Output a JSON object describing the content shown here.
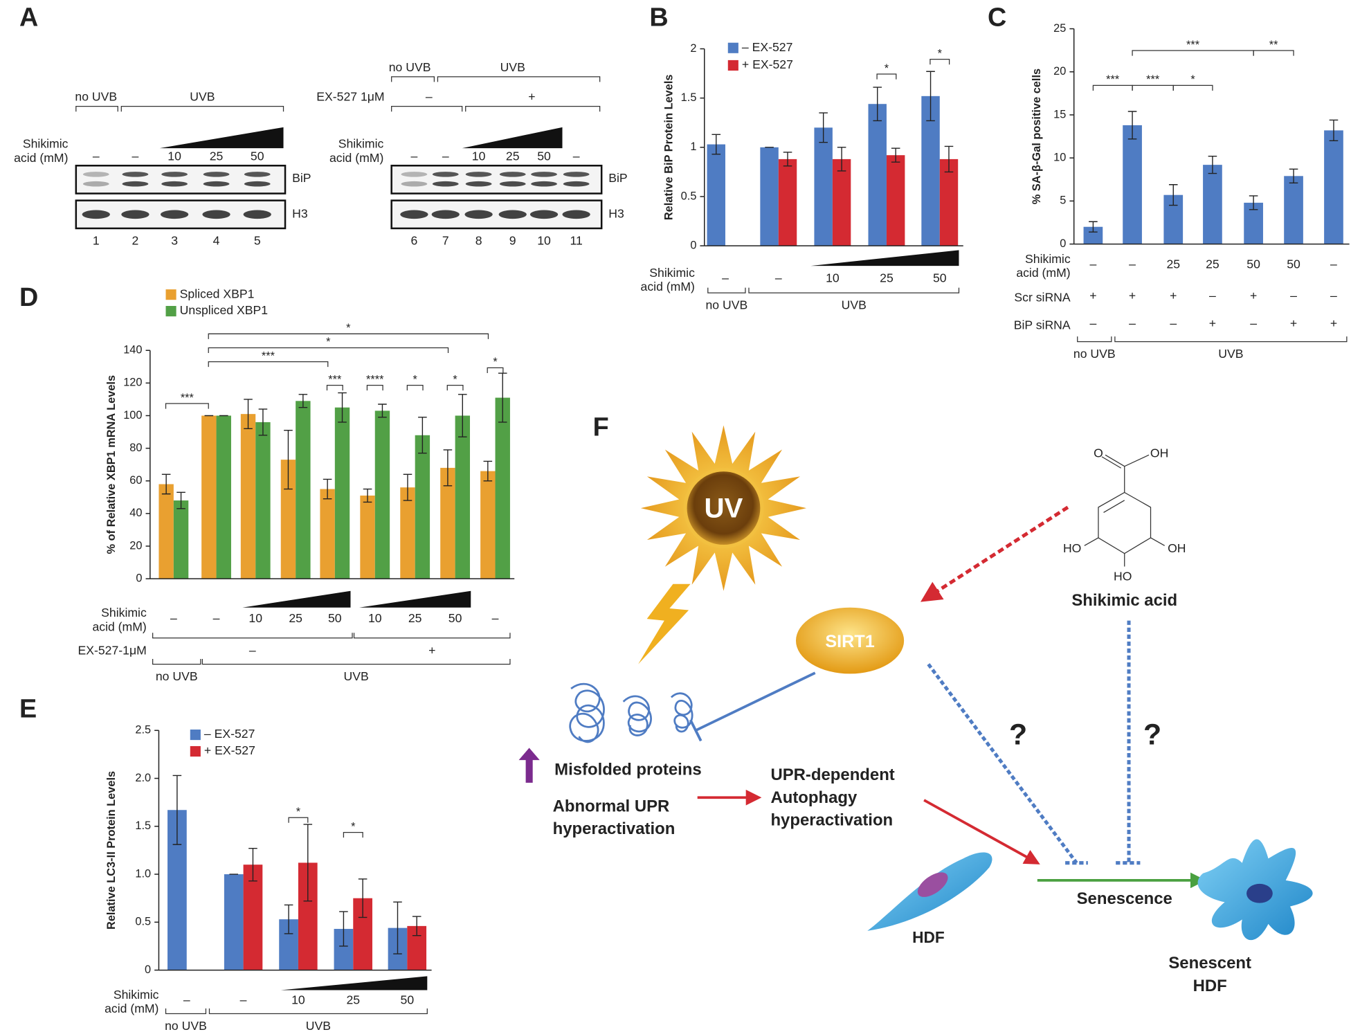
{
  "chart_data": [
    {
      "panel": "B",
      "type": "bar",
      "ylabel": "Relative BiP Protein Levels",
      "ylim": [
        0,
        2
      ],
      "yticks": [
        0,
        0.5,
        1,
        1.5,
        2
      ],
      "series": [
        {
          "name": "– EX-527",
          "color": "#4f7cc3",
          "values": [
            1.03,
            1.0,
            1.2,
            1.44,
            1.52
          ],
          "errors": [
            0.1,
            0.0,
            0.15,
            0.17,
            0.25
          ]
        },
        {
          "name": "+ EX-527",
          "color": "#d42a32",
          "values": [
            null,
            0.88,
            0.88,
            0.92,
            0.88
          ],
          "errors": [
            null,
            0.07,
            0.12,
            0.07,
            0.13
          ]
        }
      ],
      "rows": [
        {
          "label": [
            "Shikimic",
            "acid (mM)"
          ],
          "values": [
            "–",
            "–",
            "10",
            "25",
            "50"
          ]
        }
      ],
      "brackets": [
        {
          "labels": [
            "no UVB",
            "UVB"
          ]
        }
      ],
      "significance": [
        "*",
        "*"
      ]
    },
    {
      "panel": "C",
      "type": "bar",
      "ylabel": "% SA-β-Gal positive cells",
      "ylim": [
        0,
        25
      ],
      "yticks": [
        0,
        5,
        10,
        15,
        20,
        25
      ],
      "series": [
        {
          "color": "#4f7cc3",
          "values": [
            2.0,
            13.8,
            5.7,
            9.2,
            4.8,
            7.9,
            13.2
          ],
          "errors": [
            0.6,
            1.6,
            1.2,
            1.0,
            0.8,
            0.8,
            1.2
          ]
        }
      ],
      "rows": [
        {
          "label": [
            "Shikimic",
            "acid (mM)"
          ],
          "values": [
            "–",
            "–",
            "25",
            "25",
            "50",
            "50",
            "–"
          ]
        },
        {
          "label": [
            "Scr siRNA"
          ],
          "values": [
            "+",
            "+",
            "+",
            "–",
            "+",
            "–",
            "–"
          ]
        },
        {
          "label": [
            "BiP siRNA"
          ],
          "values": [
            "–",
            "–",
            "–",
            "+",
            "–",
            "+",
            "+"
          ]
        }
      ],
      "brackets": [
        {
          "labels": [
            "no UVB",
            "UVB"
          ]
        }
      ],
      "significance": [
        "***",
        "***",
        "*",
        "***",
        "**"
      ]
    },
    {
      "panel": "D",
      "type": "bar",
      "ylabel": "% of Relative XBP1 mRNA Levels",
      "ylim": [
        0,
        140
      ],
      "yticks": [
        0,
        20,
        40,
        60,
        80,
        100,
        120,
        140
      ],
      "series": [
        {
          "name": "Spliced XBP1",
          "color": "#e9a030",
          "values": [
            58,
            100,
            101,
            73,
            55,
            51,
            56,
            68,
            66
          ],
          "errors": [
            6,
            0,
            9,
            18,
            6,
            4,
            8,
            11,
            6
          ]
        },
        {
          "name": "Unspliced XBP1",
          "color": "#52a046",
          "values": [
            48,
            100,
            96,
            109,
            105,
            103,
            88,
            100,
            111
          ],
          "errors": [
            5,
            0,
            8,
            4,
            9,
            4,
            11,
            13,
            15
          ]
        }
      ],
      "rows": [
        {
          "label": [
            "Shikimic",
            "acid (mM)"
          ],
          "values": [
            "–",
            "–",
            "10",
            "25",
            "50",
            "10",
            "25",
            "50",
            "–"
          ]
        }
      ],
      "brackets": [
        {
          "label": "EX-527-1μM",
          "labels": [
            "–",
            "+"
          ]
        },
        {
          "labels": [
            "no UVB",
            "UVB"
          ]
        }
      ],
      "significance": [
        "***",
        "***",
        "*",
        "*",
        "***",
        "****",
        "*",
        "*",
        "*"
      ]
    },
    {
      "panel": "E",
      "type": "bar",
      "ylabel": "Relative LC3-II Protein Levels",
      "ylim": [
        0,
        2.5
      ],
      "yticks": [
        0,
        0.5,
        {
          "value": 1,
          "label": "1.0"
        },
        1.5,
        {
          "value": 2,
          "label": "2.0"
        },
        2.5
      ],
      "series": [
        {
          "name": "– EX-527",
          "color": "#4f7cc3",
          "values": [
            1.67,
            1.0,
            0.53,
            0.43,
            0.44
          ],
          "errors": [
            0.36,
            0.0,
            0.15,
            0.18,
            0.27
          ]
        },
        {
          "name": "+ EX-527",
          "color": "#d42a32",
          "values": [
            null,
            1.1,
            1.12,
            0.75,
            0.46
          ],
          "errors": [
            null,
            0.17,
            0.4,
            0.2,
            0.1
          ]
        }
      ],
      "rows": [
        {
          "label": [
            "Shikimic",
            "acid (mM)"
          ],
          "values": [
            "–",
            "–",
            "10",
            "25",
            "50"
          ]
        }
      ],
      "brackets": [
        {
          "labels": [
            "no UVB",
            "UVB"
          ]
        }
      ],
      "significance": [
        "*",
        "*"
      ]
    }
  ],
  "blots": {
    "panel": "A",
    "left": {
      "conditions": [
        "no UVB",
        "UVB"
      ],
      "shikimic_label": [
        "Shikimic",
        "acid (mM)"
      ],
      "shikimic": [
        "–",
        "–",
        "10",
        "25",
        "50"
      ],
      "bands": [
        "BiP",
        "H3"
      ],
      "lanes": [
        "1",
        "2",
        "3",
        "4",
        "5"
      ]
    },
    "right": {
      "conditions": [
        "no UVB",
        "UVB"
      ],
      "ex527_label": "EX-527 1μM",
      "ex527": [
        "–",
        "+"
      ],
      "shikimic_label": [
        "Shikimic",
        "acid (mM)"
      ],
      "shikimic": [
        "–",
        "–",
        "10",
        "25",
        "50",
        "–"
      ],
      "bands": [
        "BiP",
        "H3"
      ],
      "lanes": [
        "6",
        "7",
        "8",
        "9",
        "10",
        "11"
      ]
    }
  },
  "diagram": {
    "panel": "F",
    "uv": "UV",
    "sirt1": "SIRT1",
    "shikimic_acid": "Shikimic acid",
    "structure_labels": [
      "O",
      "OH",
      "HO",
      "OH",
      "HO"
    ],
    "misfolded": "Misfolded proteins",
    "abnormal_upr": [
      "Abnormal UPR",
      "hyperactivation"
    ],
    "autophagy": [
      "UPR-dependent",
      "Autophagy",
      "hyperactivation"
    ],
    "hdf": "HDF",
    "senescence": "Senescence",
    "senescent_hdf": [
      "Senescent",
      "HDF"
    ],
    "question_marks": [
      "?",
      "?"
    ]
  }
}
